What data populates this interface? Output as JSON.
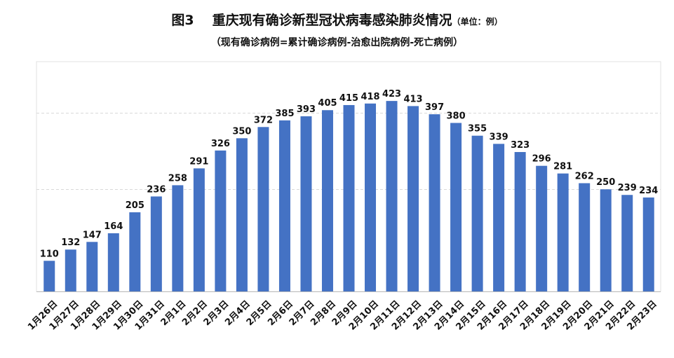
{
  "header": {
    "figure_no": "图3",
    "title": "重庆现有确诊新型冠状病毒感染肺炎情况",
    "unit": "（单位：例）",
    "subtitle": "（现有确诊病例=累计确诊病例-治愈出院病例-死亡病例）"
  },
  "colors": {
    "bar": "#4472C4",
    "grid": "#d9d9d9",
    "axis": "#bfbfbf",
    "text": "#111111"
  },
  "chart_data": {
    "type": "bar",
    "categories": [
      "1月26日",
      "1月27日",
      "1月28日",
      "1月29日",
      "1月30日",
      "1月31日",
      "2月1日",
      "2月2日",
      "2月3日",
      "2月4日",
      "2月5日",
      "2月6日",
      "2月7日",
      "2月8日",
      "2月9日",
      "2月10日",
      "2月11日",
      "2月12日",
      "2月13日",
      "2月14日",
      "2月15日",
      "2月16日",
      "2月17日",
      "2月18日",
      "2月19日",
      "2月20日",
      "2月21日",
      "2月22日",
      "2月23日"
    ],
    "values": [
      110,
      132,
      147,
      164,
      205,
      236,
      258,
      291,
      326,
      350,
      372,
      385,
      393,
      405,
      415,
      418,
      423,
      413,
      397,
      380,
      355,
      339,
      323,
      296,
      281,
      262,
      250,
      239,
      234
    ],
    "ylim": [
      50,
      500
    ],
    "gridlines": [
      250,
      400
    ],
    "grid": true,
    "data_labels": true,
    "legend": false
  }
}
